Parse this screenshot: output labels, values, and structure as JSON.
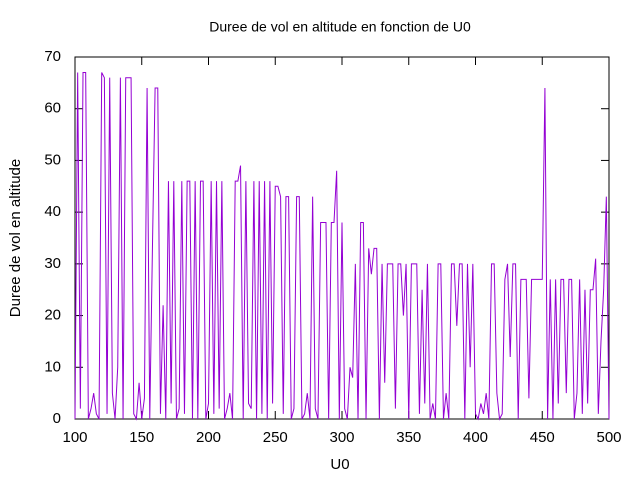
{
  "chart_data": {
    "type": "line",
    "title": "Duree de vol en altitude en fonction de U0",
    "xlabel": "U0",
    "ylabel": "Duree de vol en altitude",
    "xlim": [
      100,
      500
    ],
    "ylim": [
      0,
      70
    ],
    "xticks": [
      100,
      150,
      200,
      250,
      300,
      350,
      400,
      450,
      500
    ],
    "yticks": [
      0,
      10,
      20,
      30,
      40,
      50,
      60,
      70
    ],
    "grid": false,
    "color": "#9400d3",
    "x": [
      100,
      102,
      104,
      106,
      108,
      110,
      112,
      114,
      116,
      118,
      120,
      122,
      124,
      126,
      128,
      130,
      132,
      134,
      136,
      138,
      140,
      142,
      144,
      146,
      148,
      150,
      152,
      154,
      156,
      158,
      160,
      162,
      164,
      166,
      168,
      170,
      172,
      174,
      176,
      178,
      180,
      182,
      184,
      186,
      188,
      190,
      192,
      194,
      196,
      198,
      200,
      202,
      204,
      206,
      208,
      210,
      212,
      214,
      216,
      218,
      220,
      222,
      224,
      226,
      228,
      230,
      232,
      234,
      236,
      238,
      240,
      242,
      244,
      246,
      248,
      250,
      252,
      254,
      256,
      258,
      260,
      262,
      264,
      266,
      268,
      270,
      272,
      274,
      276,
      278,
      280,
      282,
      284,
      286,
      288,
      290,
      292,
      294,
      296,
      298,
      300,
      302,
      304,
      306,
      308,
      310,
      312,
      314,
      316,
      318,
      320,
      322,
      324,
      326,
      328,
      330,
      332,
      334,
      336,
      338,
      340,
      342,
      344,
      346,
      348,
      350,
      352,
      354,
      356,
      358,
      360,
      362,
      364,
      366,
      368,
      370,
      372,
      374,
      376,
      378,
      380,
      382,
      384,
      386,
      388,
      390,
      392,
      394,
      396,
      398,
      400,
      402,
      404,
      406,
      408,
      410,
      412,
      414,
      416,
      418,
      420,
      422,
      424,
      426,
      428,
      430,
      432,
      434,
      436,
      438,
      440,
      442,
      444,
      446,
      448,
      450,
      452,
      454,
      456,
      458,
      460,
      462,
      464,
      466,
      468,
      470,
      472,
      474,
      476,
      478,
      480,
      482,
      484,
      486,
      488,
      490,
      492,
      494,
      496,
      498,
      500
    ],
    "values": [
      0,
      67,
      2,
      67,
      67,
      0,
      2,
      5,
      1,
      0,
      67,
      66,
      1,
      66,
      5,
      0,
      10,
      66,
      0,
      66,
      66,
      66,
      1,
      0,
      7,
      0,
      4,
      64,
      0,
      33,
      64,
      64,
      1,
      22,
      0,
      46,
      3,
      46,
      0,
      2,
      46,
      1,
      46,
      46,
      0,
      46,
      0,
      46,
      46,
      0,
      3,
      46,
      1,
      46,
      2,
      46,
      0,
      2,
      5,
      0,
      46,
      46,
      49,
      0,
      46,
      3,
      2,
      46,
      0,
      46,
      1,
      46,
      0,
      46,
      3,
      45,
      45,
      43,
      1,
      43,
      43,
      0,
      2,
      43,
      43,
      0,
      1,
      5,
      0,
      43,
      2,
      0,
      38,
      38,
      38,
      0,
      38,
      38,
      48,
      0,
      38,
      2,
      0,
      10,
      8,
      30,
      0,
      38,
      38,
      0,
      33,
      28,
      33,
      33,
      0,
      30,
      7,
      30,
      30,
      30,
      2,
      30,
      30,
      20,
      30,
      0,
      30,
      30,
      30,
      1,
      25,
      3,
      30,
      0,
      3,
      0,
      30,
      30,
      0,
      5,
      0,
      30,
      30,
      18,
      30,
      30,
      0,
      30,
      10,
      30,
      1,
      0,
      3,
      1,
      5,
      0,
      30,
      30,
      5,
      0,
      1,
      27,
      30,
      12,
      30,
      30,
      0,
      27,
      27,
      27,
      4,
      27,
      27,
      27,
      27,
      27,
      64,
      0,
      27,
      0,
      27,
      3,
      27,
      27,
      5,
      27,
      27,
      0,
      5,
      27,
      1,
      25,
      3,
      25,
      25,
      31,
      1,
      15,
      25,
      43,
      0
    ]
  }
}
